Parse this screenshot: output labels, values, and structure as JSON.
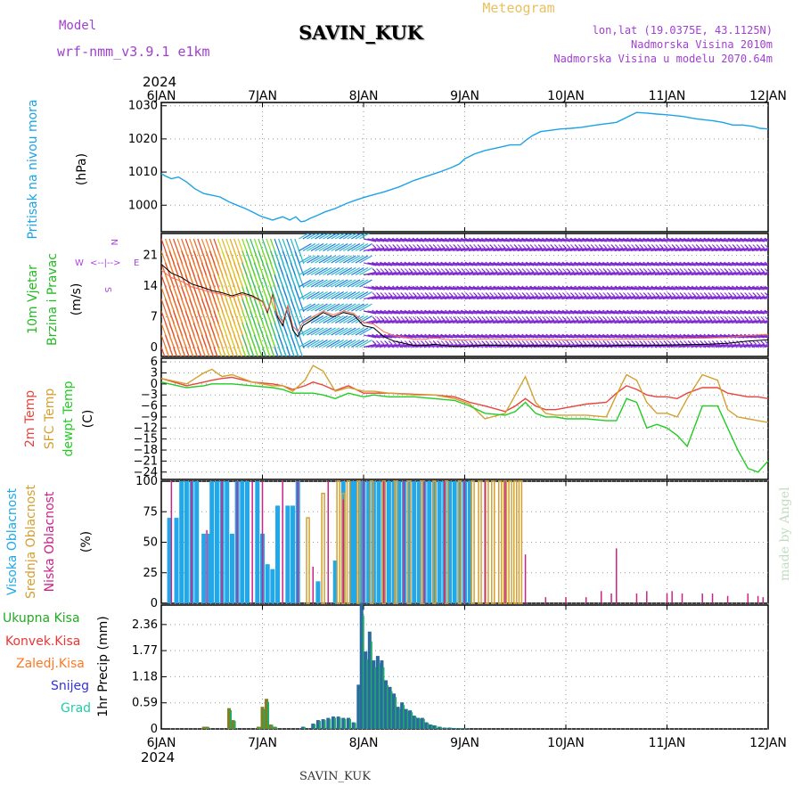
{
  "header": {
    "model_label": "Model",
    "model_name": "wrf-nmm_v3.9.1 e1km",
    "station": "SAVIN_KUK",
    "title": "Meteogram",
    "coords": "lon,lat (19.0375E, 43.1125N)",
    "altitude": "Nadmorska Visina 2010m",
    "model_altitude": "Nadmorska Visina u modelu 2070.64m",
    "year_top": "2024",
    "year_bottom": "2024",
    "footer_station": "SAVIN_KUK",
    "watermark": "made by Angel"
  },
  "colors": {
    "pressure": "#1aa3e8",
    "temp2m": "#e8453c",
    "sfc": "#d4a030",
    "dewpt": "#22cc22",
    "high_cloud": "#22a8e8",
    "mid_cloud": "#d4a030",
    "low_cloud": "#cc2288",
    "total_precip": "#22aa22",
    "conv": "#ee3333",
    "frz": "#ff7722",
    "snow": "#3333dd",
    "grad": "#22ccaa",
    "wind_label": "#22bb22",
    "wind_dir": "#aa44dd",
    "purple_text": "#a040d0"
  },
  "chart_data": [
    {
      "type": "line",
      "panel": "pressure",
      "ylabel": "Pritisak na nivou mora",
      "unit": "(hPa)",
      "ylim": [
        992,
        1031
      ],
      "yticks": [
        "1000",
        "1010",
        "1020",
        "1030"
      ],
      "x_days": [
        0,
        0.04,
        0.1,
        0.17,
        0.25,
        0.33,
        0.42,
        0.5,
        0.58,
        0.67,
        0.75,
        0.83,
        0.9,
        0.96,
        1.0,
        1.05,
        1.1,
        1.15,
        1.2,
        1.27,
        1.33,
        1.38,
        1.42,
        1.47,
        1.55,
        1.62,
        1.72,
        1.83,
        1.92,
        2.0,
        2.1,
        2.2,
        2.35,
        2.5,
        2.6,
        2.75,
        2.88,
        2.95,
        3.0,
        3.1,
        3.2,
        3.35,
        3.45,
        3.55,
        3.6,
        3.67,
        3.75,
        3.85,
        3.95,
        4.05,
        4.15,
        4.3,
        4.5,
        4.6,
        4.7,
        4.8,
        4.9,
        5.0,
        5.15,
        5.3,
        5.45,
        5.55,
        5.65,
        5.75,
        5.85,
        5.92,
        6.0
      ],
      "values": [
        1009.5,
        1008.8,
        1008,
        1008.5,
        1007,
        1005,
        1003.5,
        1003,
        1002.5,
        1001,
        1000,
        999,
        998,
        997,
        996.5,
        996,
        995.5,
        996,
        996.5,
        995.5,
        996.5,
        995,
        995.2,
        996,
        997,
        998,
        999,
        1000.5,
        1001.5,
        1002.3,
        1003.2,
        1004,
        1005.5,
        1007.5,
        1008.5,
        1010,
        1011.5,
        1012.5,
        1014,
        1015.5,
        1016.5,
        1017.5,
        1018.2,
        1018.2,
        1019.5,
        1021,
        1022.2,
        1022.6,
        1023,
        1023.2,
        1023.5,
        1024.2,
        1025,
        1026.5,
        1028,
        1027.8,
        1027.5,
        1027.3,
        1026.8,
        1026,
        1025.5,
        1025,
        1024.2,
        1024.2,
        1023.8,
        1023.2,
        1023
      ]
    },
    {
      "type": "line",
      "panel": "wind",
      "ylabel": "10m Vjetar",
      "ylabel2": "Brzina i Pravac",
      "unit": "(m/s)",
      "compass_n": "N",
      "compass_w": "W",
      "compass_e": "E",
      "compass_s": "S",
      "ylim": [
        -2,
        26
      ],
      "yticks": [
        "0",
        "7",
        "14",
        "21"
      ],
      "x_days": [
        0,
        0.1,
        0.2,
        0.3,
        0.4,
        0.5,
        0.6,
        0.7,
        0.8,
        0.9,
        1.0,
        1.05,
        1.1,
        1.15,
        1.2,
        1.25,
        1.3,
        1.35,
        1.4,
        1.5,
        1.6,
        1.7,
        1.8,
        1.9,
        2.0,
        2.1,
        2.2,
        2.3,
        2.4,
        2.5,
        2.6,
        2.7,
        2.8,
        2.9,
        3.0,
        3.2,
        3.4,
        3.6,
        3.8,
        4.0,
        4.2,
        4.4,
        4.6,
        4.8,
        5.0,
        5.2,
        5.4,
        5.6,
        5.8,
        6.0
      ],
      "values": [
        19,
        17,
        16,
        14.5,
        13.8,
        13,
        12.5,
        11.8,
        12.5,
        11.8,
        10.5,
        8,
        12,
        7,
        5,
        9.5,
        4,
        2.5,
        5,
        6.5,
        8,
        7,
        8,
        7.5,
        5,
        4.5,
        2.5,
        1.5,
        1,
        0.5,
        0.5,
        0.8,
        0.5,
        0.3,
        0.3,
        0.6,
        0.5,
        0.4,
        0.5,
        0.3,
        0.5,
        0.4,
        0.6,
        0.5,
        0.6,
        0.7,
        0.8,
        1.0,
        1.5,
        1.8
      ]
    },
    {
      "type": "line",
      "panel": "temperature",
      "ylabel1": "2m Temp",
      "ylabel2": "SFC Temp",
      "ylabel3": "dewpt Temp",
      "unit": "(C)",
      "ylim": [
        -26,
        7
      ],
      "yticks": [
        "6",
        "3",
        "0",
        "−3",
        "−6",
        "−9",
        "−12",
        "−15",
        "−18",
        "−21",
        "−24"
      ],
      "x_days": [
        0,
        0.25,
        0.42,
        0.5,
        0.6,
        0.7,
        0.9,
        1.1,
        1.2,
        1.3,
        1.42,
        1.5,
        1.6,
        1.72,
        1.85,
        2.0,
        2.1,
        2.25,
        2.5,
        2.7,
        2.9,
        3.05,
        3.2,
        3.4,
        3.5,
        3.6,
        3.7,
        3.8,
        3.9,
        4.0,
        4.2,
        4.4,
        4.5,
        4.6,
        4.7,
        4.8,
        4.9,
        5.0,
        5.1,
        5.2,
        5.35,
        5.5,
        5.6,
        5.7,
        5.8,
        5.9,
        6.0
      ],
      "series": [
        {
          "name": "2m Temp",
          "key": "temp2m",
          "values": [
            1.5,
            -0.5,
            0.5,
            1,
            1.5,
            1.8,
            0.5,
            0,
            -0.5,
            -1.5,
            -0.5,
            0.5,
            -0.3,
            -1.8,
            -0.5,
            -2.5,
            -2.5,
            -2.5,
            -2.8,
            -3,
            -3.5,
            -5,
            -6,
            -7.5,
            -6,
            -4,
            -6,
            -7,
            -7,
            -6.5,
            -5.5,
            -5,
            -2.5,
            -0.5,
            -1.5,
            -3,
            -3.5,
            -3.5,
            -4,
            -2.5,
            -1,
            -1,
            -2.5,
            -3,
            -3.5,
            -3.5,
            -4
          ]
        },
        {
          "name": "SFC Temp",
          "key": "sfc",
          "values": [
            1.5,
            0,
            3,
            4,
            2,
            2.5,
            0.5,
            -0.5,
            -0.5,
            -2,
            1,
            5,
            3.5,
            -2,
            -1,
            -2,
            -2,
            -2.5,
            -3,
            -3,
            -4,
            -5.5,
            -9.5,
            -8,
            -3,
            2,
            -5,
            -8,
            -8.5,
            -8.5,
            -8.5,
            -9,
            -3,
            2.5,
            1,
            -5,
            -8,
            -8,
            -9,
            -4,
            2.5,
            1,
            -7,
            -9,
            -9.5,
            -10,
            -10.5
          ]
        },
        {
          "name": "dewpt Temp",
          "key": "dewpt",
          "values": [
            0.5,
            -1,
            -0.5,
            0,
            0,
            0,
            -0.5,
            -1,
            -1.5,
            -2.5,
            -2.5,
            -2.5,
            -3,
            -4,
            -2.5,
            -3.5,
            -3,
            -3.5,
            -3.5,
            -4,
            -4.5,
            -6,
            -8,
            -8.5,
            -7.5,
            -5,
            -8,
            -9,
            -9,
            -9.5,
            -9.5,
            -10,
            -10,
            -4,
            -5,
            -12,
            -11,
            -12,
            -14,
            -17,
            -6,
            -6,
            -12,
            -18,
            -23,
            -24,
            -21
          ]
        }
      ]
    },
    {
      "type": "bar",
      "panel": "clouds",
      "ylabel1": "Visoka Oblacnost",
      "ylabel2": "Srednja Oblacnost",
      "ylabel3": "Niska Oblacnost",
      "unit": "(%)",
      "ylim": [
        0,
        100
      ],
      "yticks": [
        "0",
        "25",
        "50",
        "75",
        "100"
      ],
      "high_x": [
        0.08,
        0.15,
        0.2,
        0.25,
        0.3,
        0.35,
        0.42,
        0.48,
        0.5,
        0.55,
        0.6,
        0.65,
        0.7,
        0.75,
        0.8,
        0.85,
        0.95,
        1.0,
        1.05,
        1.1,
        1.15,
        1.25,
        1.3,
        1.35,
        1.55,
        1.72,
        1.8,
        1.88,
        1.92,
        1.97,
        2.0,
        2.05,
        2.1,
        2.15,
        2.2,
        2.25,
        2.3,
        2.35,
        2.4,
        2.45,
        2.5,
        2.55,
        2.6,
        2.65,
        2.7,
        2.75,
        2.8,
        2.85,
        2.9,
        2.95,
        3.0,
        3.05
      ],
      "high_v": [
        70,
        70,
        100,
        100,
        100,
        100,
        57,
        57,
        100,
        100,
        100,
        100,
        57,
        100,
        100,
        100,
        100,
        57,
        32,
        28,
        80,
        80,
        80,
        100,
        18,
        35,
        100,
        100,
        100,
        100,
        100,
        100,
        100,
        100,
        100,
        100,
        100,
        100,
        100,
        100,
        100,
        100,
        100,
        100,
        100,
        100,
        100,
        100,
        100,
        100,
        100,
        100
      ],
      "mid_x": [
        1.45,
        1.6,
        1.75,
        1.8,
        1.85,
        1.95,
        2.08,
        2.2,
        2.32,
        2.45,
        2.58,
        2.7,
        2.82,
        2.95,
        3.08,
        3.15,
        3.22,
        3.28,
        3.35,
        3.4,
        3.45,
        3.5,
        3.55
      ],
      "mid_v": [
        70,
        90,
        100,
        90,
        100,
        100,
        100,
        100,
        100,
        100,
        100,
        100,
        100,
        100,
        100,
        100,
        100,
        100,
        100,
        100,
        100,
        100,
        100
      ],
      "low_x": [
        0.1,
        0.3,
        0.45,
        0.6,
        0.75,
        0.9,
        1.0,
        1.2,
        1.35,
        1.5,
        1.65,
        1.8,
        2.0,
        2.2,
        2.4,
        2.6,
        2.8,
        3.0,
        3.2,
        3.4,
        3.6,
        3.8,
        4.0,
        4.2,
        4.35,
        4.45,
        4.5,
        4.7,
        4.8,
        5.0,
        5.05,
        5.15,
        5.35,
        5.45,
        5.6,
        5.8,
        5.9,
        5.95
      ],
      "low_v": [
        100,
        100,
        60,
        100,
        100,
        100,
        100,
        100,
        100,
        30,
        100,
        85,
        100,
        100,
        100,
        100,
        100,
        100,
        100,
        100,
        40,
        5,
        5,
        5,
        10,
        8,
        45,
        8,
        10,
        8,
        10,
        8,
        8,
        8,
        6,
        8,
        6,
        5
      ]
    },
    {
      "type": "bar",
      "panel": "precip",
      "legend1": "Ukupna Kisa",
      "legend2": "Konvek.Kisa",
      "legend3": "Zaledj.Kisa",
      "legend4": "Snijeg",
      "legend5": "Grad",
      "ylabel": "1hr Precip (mm)",
      "ylim": [
        0,
        2.8
      ],
      "yticks": [
        "0",
        "0.59",
        "1.18",
        "1.77",
        "2.36"
      ],
      "x_days": [
        0.42,
        0.45,
        0.67,
        0.71,
        0.96,
        1.0,
        1.04,
        1.08,
        1.12,
        1.4,
        1.5,
        1.55,
        1.6,
        1.65,
        1.7,
        1.75,
        1.8,
        1.85,
        1.9,
        1.95,
        1.98,
        2.02,
        2.06,
        2.1,
        2.14,
        2.18,
        2.22,
        2.26,
        2.3,
        2.34,
        2.38,
        2.42,
        2.46,
        2.5,
        2.54,
        2.58,
        2.62,
        2.66,
        2.7,
        2.75,
        2.8,
        2.85,
        2.9,
        2.95,
        3.0
      ],
      "values": [
        0.05,
        0.05,
        0.47,
        0.2,
        0.05,
        0.5,
        0.68,
        0.1,
        0.05,
        0.05,
        0.12,
        0.2,
        0.22,
        0.25,
        0.28,
        0.28,
        0.25,
        0.25,
        0.15,
        1.0,
        2.85,
        1.75,
        2.2,
        1.55,
        1.65,
        1.55,
        1.1,
        0.95,
        0.8,
        0.5,
        0.6,
        0.45,
        0.42,
        0.3,
        0.25,
        0.25,
        0.15,
        0.1,
        0.08,
        0.05,
        0.03,
        0.03,
        0.02,
        0.02,
        0.02
      ]
    }
  ],
  "xaxis": {
    "labels": [
      "6JAN",
      "7JAN",
      "8JAN",
      "9JAN",
      "10JAN",
      "11JAN",
      "12JAN"
    ]
  }
}
